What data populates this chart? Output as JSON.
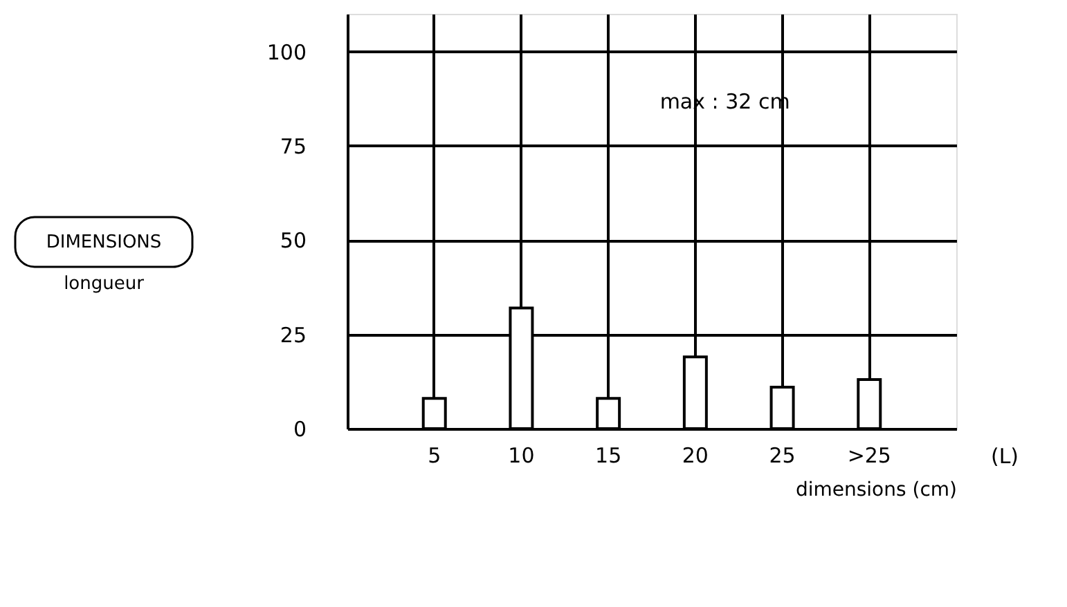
{
  "chart_data": {
    "type": "bar",
    "xlabel": "dimensions (cm)",
    "categories": [
      "5",
      "10",
      "15",
      "20",
      "25",
      ">25"
    ],
    "values": [
      8,
      32,
      8,
      19,
      11,
      13
    ],
    "color": "#ffffff",
    "ylim": [
      0,
      110
    ],
    "yticks": [
      0,
      25,
      50,
      75,
      100
    ],
    "grid": true,
    "annotations": [
      "max : 32 cm",
      "DIMENSIONS",
      "longueur",
      "(L)"
    ]
  }
}
